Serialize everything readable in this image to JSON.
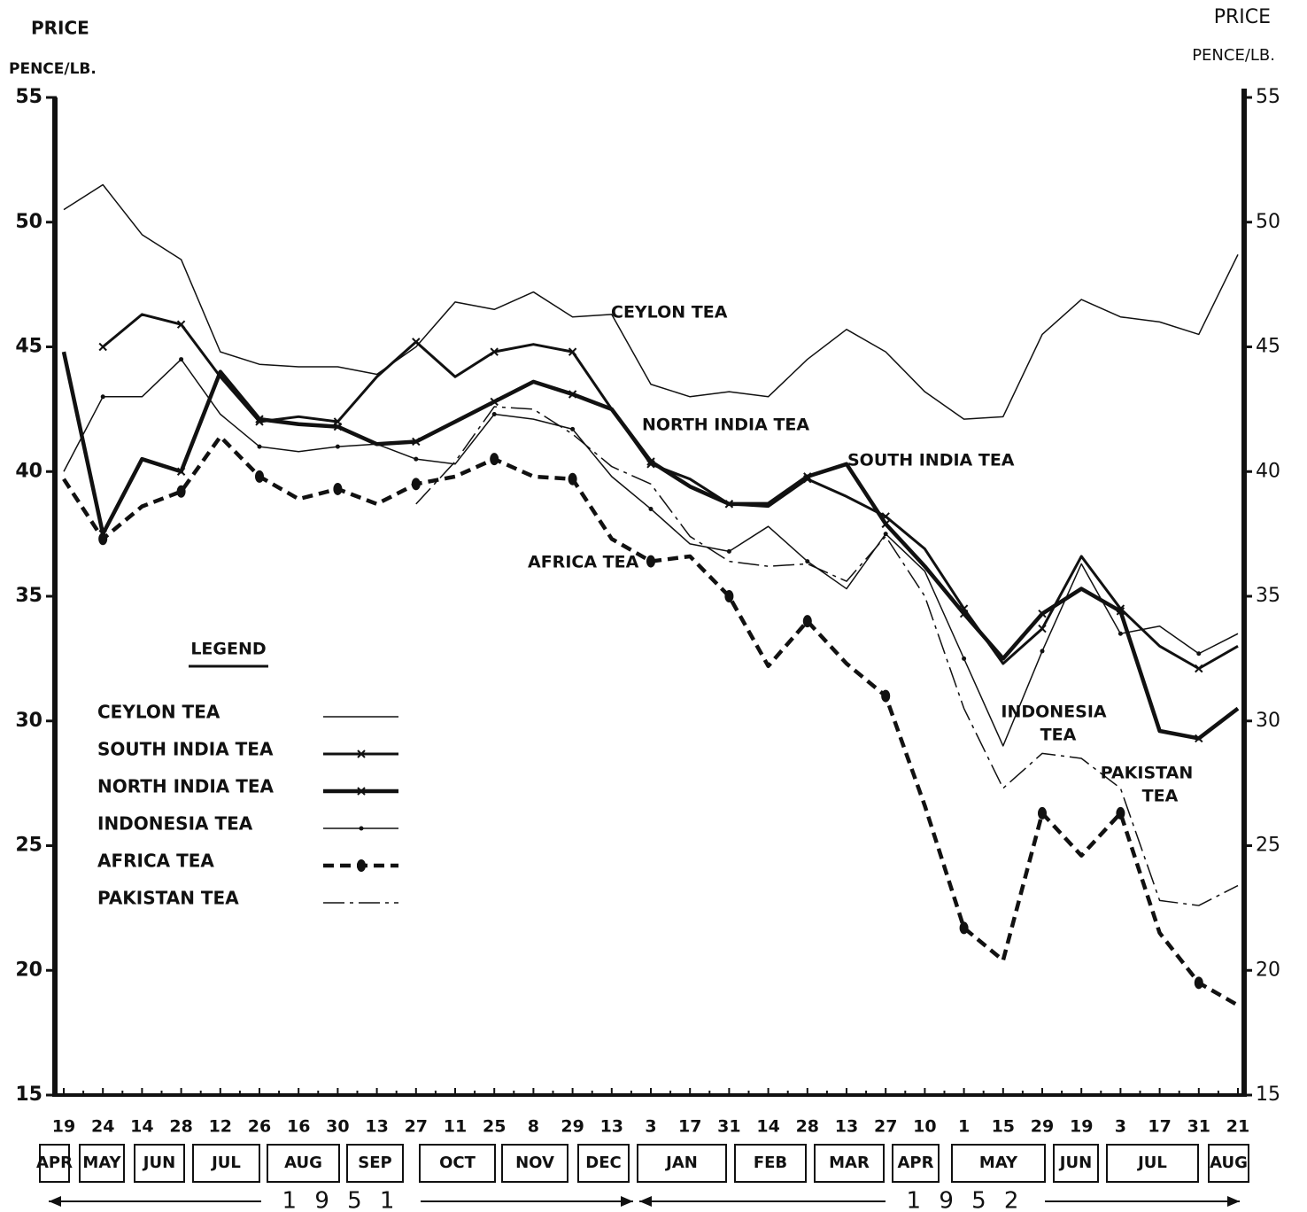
{
  "chart_data": {
    "type": "line",
    "y_label": "PRICE",
    "y_unit": "PENCE/LB.",
    "y2_label": "PRICE",
    "y2_unit": "PENCE/LB.",
    "categories": [
      "19",
      "24",
      "14",
      "28",
      "12",
      "26",
      "16",
      "30",
      "13",
      "27",
      "11",
      "25",
      "8",
      "29",
      "13",
      "3",
      "17",
      "31",
      "14",
      "28",
      "13",
      "27",
      "10",
      "1",
      "15",
      "29",
      "19",
      "3",
      "17",
      "31",
      "21"
    ],
    "months": [
      "APR",
      "MAY",
      "JUN",
      "JUL",
      "AUG",
      "SEP",
      "OCT",
      "NOV",
      "DEC",
      "JAN",
      "FEB",
      "MAR",
      "APR",
      "MAY",
      "JUN",
      "JUL",
      "AUG"
    ],
    "years": [
      "1 9 5 1",
      "1 9 5 2"
    ],
    "ylim": [
      15,
      55
    ],
    "yticks": [
      15,
      20,
      25,
      30,
      35,
      40,
      45,
      50,
      55
    ],
    "y2lim": [
      15,
      55
    ],
    "y2ticks": [
      15,
      20,
      25,
      30,
      35,
      40,
      45,
      50,
      55
    ],
    "legend_title": "LEGEND",
    "series": [
      {
        "name": "CEYLON TEA",
        "color": "#111111",
        "line_style": "solid",
        "weight": "light",
        "marker": "none",
        "values": [
          50.5,
          51.5,
          49.5,
          48.5,
          44.8,
          44.3,
          44.2,
          44.2,
          43.9,
          45,
          46.8,
          46.5,
          47.2,
          46.2,
          46.3,
          43.5,
          43,
          43.2,
          43,
          44.5,
          45.7,
          44.8,
          43.2,
          42.1,
          42.2,
          45.5,
          46.9,
          46.2,
          46,
          45.5,
          48.7
        ]
      },
      {
        "name": "SOUTH INDIA TEA",
        "color": "#111111",
        "line_style": "solid",
        "weight": "medium",
        "marker": "cross",
        "values": [
          null,
          45,
          46.3,
          45.9,
          43.8,
          42,
          42.2,
          42,
          43.8,
          45.2,
          43.8,
          44.8,
          45.1,
          44.8,
          42.5,
          40.3,
          39.7,
          38.7,
          38.6,
          39.7,
          39,
          38.2,
          36.9,
          34.5,
          32.3,
          33.7,
          36.6,
          34.5,
          33,
          32.1,
          33
        ]
      },
      {
        "name": "NORTH INDIA TEA",
        "color": "#111111",
        "line_style": "solid",
        "weight": "heavy",
        "marker": "cross",
        "values": [
          44.8,
          37.5,
          40.5,
          40,
          44,
          42.1,
          41.9,
          41.8,
          41.1,
          41.2,
          42,
          42.8,
          43.6,
          43.1,
          42.5,
          40.4,
          39.4,
          38.7,
          38.7,
          39.8,
          40.3,
          37.9,
          36.2,
          34.3,
          32.5,
          34.3,
          35.3,
          34.4,
          29.6,
          29.3,
          30.5
        ]
      },
      {
        "name": "INDONESIA TEA",
        "color": "#111111",
        "line_style": "solid",
        "weight": "light",
        "marker": "dot",
        "values": [
          40,
          43,
          43,
          44.5,
          42.3,
          41,
          40.8,
          41,
          41.1,
          40.5,
          40.3,
          42.3,
          42.1,
          41.7,
          39.8,
          38.5,
          37.1,
          36.8,
          37.8,
          36.4,
          35.3,
          37.5,
          36,
          32.5,
          29,
          32.8,
          36.3,
          33.5,
          33.8,
          32.7,
          33.5
        ]
      },
      {
        "name": "AFRICA TEA",
        "color": "#111111",
        "line_style": "dashed",
        "weight": "heavy",
        "marker": "big-dot",
        "values": [
          39.7,
          37.3,
          38.6,
          39.2,
          41.4,
          39.8,
          38.9,
          39.3,
          38.7,
          39.5,
          39.8,
          40.5,
          39.8,
          39.7,
          37.3,
          36.4,
          36.6,
          35,
          32.2,
          34,
          32.3,
          31,
          26.6,
          21.7,
          20.4,
          26.3,
          24.6,
          26.3,
          21.5,
          19.5,
          18.6
        ]
      },
      {
        "name": "PAKISTAN TEA",
        "color": "#111111",
        "line_style": "dashdot",
        "weight": "light",
        "marker": "none",
        "values": [
          null,
          null,
          null,
          null,
          null,
          null,
          null,
          null,
          null,
          38.7,
          40.4,
          42.6,
          42.5,
          41.5,
          40.2,
          39.5,
          37.4,
          36.4,
          36.2,
          36.3,
          35.6,
          37.4,
          35,
          30.5,
          27.3,
          28.7,
          28.5,
          27.3,
          22.8,
          22.6,
          23.4
        ]
      }
    ],
    "annotations": [
      "CEYLON TEA",
      "NORTH INDIA TEA",
      "SOUTH INDIA TEA",
      "AFRICA TEA",
      "INDONESIA",
      "TEA",
      "PAKISTAN",
      "TEA"
    ]
  }
}
